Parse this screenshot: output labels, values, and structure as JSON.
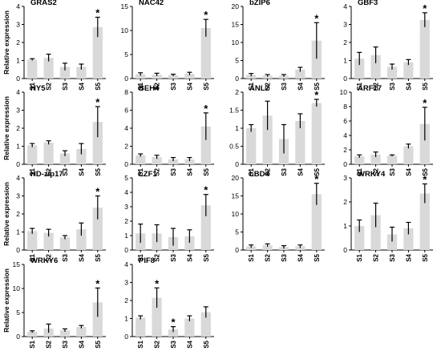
{
  "figure": {
    "ylabel": "Relative expression",
    "bar_color": "#d9d9d9",
    "axis_color": "#000000"
  },
  "chart_data": [
    {
      "type": "bar",
      "title": "GRAS2",
      "categories": [
        "S1",
        "S2",
        "S3",
        "S4",
        "S5"
      ],
      "values": [
        1.05,
        1.15,
        0.65,
        0.65,
        2.85
      ],
      "errors": [
        0.05,
        0.2,
        0.2,
        0.15,
        0.55
      ],
      "significant": [
        false,
        false,
        false,
        false,
        true
      ],
      "ylim": [
        0,
        4
      ],
      "yticks": [
        0,
        1,
        2,
        3,
        4
      ],
      "ylabel": "Relative expression"
    },
    {
      "type": "bar",
      "title": "NAC42",
      "categories": [
        "S1",
        "S2",
        "S3",
        "S4",
        "S5"
      ],
      "values": [
        0.9,
        0.8,
        0.7,
        1.0,
        10.5
      ],
      "errors": [
        0.3,
        0.3,
        0.2,
        0.3,
        1.8
      ],
      "significant": [
        false,
        false,
        false,
        false,
        true
      ],
      "ylim": [
        0,
        15
      ],
      "yticks": [
        0,
        5,
        10,
        15
      ],
      "ylabel": ""
    },
    {
      "type": "bar",
      "title": "bZIP6",
      "categories": [
        "S1",
        "S2",
        "S3",
        "S4",
        "S5"
      ],
      "values": [
        1.0,
        0.8,
        0.8,
        2.5,
        10.5
      ],
      "errors": [
        0.4,
        0.3,
        0.3,
        0.6,
        5.0
      ],
      "significant": [
        false,
        false,
        false,
        false,
        true
      ],
      "ylim": [
        0,
        20
      ],
      "yticks": [
        0,
        5,
        10,
        15,
        20
      ],
      "ylabel": ""
    },
    {
      "type": "bar",
      "title": "GBF3",
      "categories": [
        "S1",
        "S2",
        "S3",
        "S4",
        "S5"
      ],
      "values": [
        1.1,
        1.3,
        0.65,
        0.9,
        3.25
      ],
      "errors": [
        0.35,
        0.45,
        0.15,
        0.15,
        0.4
      ],
      "significant": [
        false,
        false,
        false,
        false,
        true
      ],
      "ylim": [
        0,
        4
      ],
      "yticks": [
        0,
        1,
        2,
        3,
        4
      ],
      "ylabel": ""
    },
    {
      "type": "bar",
      "title": "HY5",
      "categories": [
        "S1",
        "S2",
        "S3",
        "S4",
        "S5"
      ],
      "values": [
        1.05,
        1.2,
        0.6,
        0.85,
        2.35
      ],
      "errors": [
        0.1,
        0.1,
        0.15,
        0.3,
        0.85
      ],
      "significant": [
        false,
        false,
        false,
        false,
        true
      ],
      "ylim": [
        0,
        4
      ],
      "yticks": [
        0,
        1,
        2,
        3,
        4
      ],
      "ylabel": "Relative expression"
    },
    {
      "type": "bar",
      "title": "BEH4",
      "categories": [
        "S1",
        "S2",
        "S3",
        "S4",
        "S5"
      ],
      "values": [
        1.0,
        0.8,
        0.55,
        0.55,
        4.2
      ],
      "errors": [
        0.15,
        0.2,
        0.2,
        0.2,
        1.5
      ],
      "significant": [
        false,
        false,
        false,
        false,
        true
      ],
      "ylim": [
        0,
        8
      ],
      "yticks": [
        0,
        2,
        4,
        6,
        8
      ],
      "ylabel": ""
    },
    {
      "type": "bar",
      "title": "ANL2",
      "categories": [
        "S1",
        "S2",
        "S3",
        "S4",
        "S5"
      ],
      "values": [
        1.0,
        1.35,
        0.7,
        1.2,
        1.7
      ],
      "errors": [
        0.1,
        0.4,
        0.4,
        0.2,
        0.1
      ],
      "significant": [
        false,
        false,
        false,
        false,
        true
      ],
      "ylim": [
        0,
        2.0
      ],
      "yticks": [
        0,
        0.5,
        1.0,
        1.5,
        2.0
      ],
      "ylabel": ""
    },
    {
      "type": "bar",
      "title": "ARF17",
      "categories": [
        "S1",
        "S2",
        "S3",
        "S4",
        "S5"
      ],
      "values": [
        1.1,
        1.35,
        1.2,
        2.5,
        5.6
      ],
      "errors": [
        0.2,
        0.35,
        0.1,
        0.3,
        2.3
      ],
      "significant": [
        false,
        false,
        false,
        false,
        true
      ],
      "ylim": [
        0,
        10
      ],
      "yticks": [
        0,
        2,
        4,
        6,
        8,
        10
      ],
      "ylabel": ""
    },
    {
      "type": "bar",
      "title": "HD-zip17",
      "categories": [
        "S1",
        "S2",
        "S3",
        "S4",
        "S5"
      ],
      "values": [
        1.05,
        0.95,
        0.7,
        1.15,
        2.35
      ],
      "errors": [
        0.15,
        0.2,
        0.1,
        0.35,
        0.65
      ],
      "significant": [
        false,
        false,
        false,
        false,
        true
      ],
      "ylim": [
        0,
        4
      ],
      "yticks": [
        0,
        1,
        2,
        3,
        4
      ],
      "ylabel": "Relative expression"
    },
    {
      "type": "bar",
      "title": "LZF1",
      "categories": [
        "S1",
        "S2",
        "S3",
        "S4",
        "S5"
      ],
      "values": [
        1.15,
        1.15,
        0.9,
        0.95,
        3.1
      ],
      "errors": [
        0.65,
        0.6,
        0.6,
        0.45,
        0.75
      ],
      "significant": [
        false,
        false,
        false,
        false,
        true
      ],
      "ylim": [
        0,
        5
      ],
      "yticks": [
        0,
        1,
        2,
        3,
        4,
        5
      ],
      "ylabel": ""
    },
    {
      "type": "bar",
      "title": "LBD4",
      "categories": [
        "S1",
        "S2",
        "S3",
        "S4",
        "S5"
      ],
      "values": [
        1.0,
        1.3,
        0.8,
        1.0,
        15.5
      ],
      "errors": [
        0.4,
        0.4,
        0.4,
        0.4,
        3.0
      ],
      "significant": [
        false,
        false,
        false,
        false,
        true
      ],
      "ylim": [
        0,
        20
      ],
      "yticks": [
        0,
        5,
        10,
        15,
        20
      ],
      "ylabel": ""
    },
    {
      "type": "bar",
      "title": "WRKY4",
      "categories": [
        "S1",
        "S2",
        "S3",
        "S4",
        "S5"
      ],
      "values": [
        1.0,
        1.45,
        0.65,
        0.9,
        2.35
      ],
      "errors": [
        0.25,
        0.5,
        0.3,
        0.25,
        0.4
      ],
      "significant": [
        false,
        false,
        false,
        false,
        true
      ],
      "ylim": [
        0,
        3
      ],
      "yticks": [
        0,
        1,
        2,
        3
      ],
      "ylabel": ""
    },
    {
      "type": "bar",
      "title": "WRKY6",
      "categories": [
        "S1",
        "S2",
        "S3",
        "S4",
        "S5"
      ],
      "values": [
        1.0,
        1.7,
        1.3,
        2.0,
        7.1
      ],
      "errors": [
        0.2,
        0.9,
        0.3,
        0.3,
        3.0
      ],
      "significant": [
        false,
        false,
        false,
        false,
        true
      ],
      "ylim": [
        0,
        15
      ],
      "yticks": [
        0,
        5,
        10,
        15
      ],
      "ylabel": "Relative expression"
    },
    {
      "type": "bar",
      "title": "PIF8",
      "categories": [
        "S1",
        "S2",
        "S3",
        "S4",
        "S5"
      ],
      "values": [
        1.05,
        2.15,
        0.4,
        1.0,
        1.35
      ],
      "errors": [
        0.1,
        0.55,
        0.15,
        0.15,
        0.3
      ],
      "significant": [
        false,
        true,
        true,
        false,
        false
      ],
      "ylim": [
        0,
        4
      ],
      "yticks": [
        0,
        1,
        2,
        3,
        4
      ],
      "ylabel": ""
    }
  ]
}
